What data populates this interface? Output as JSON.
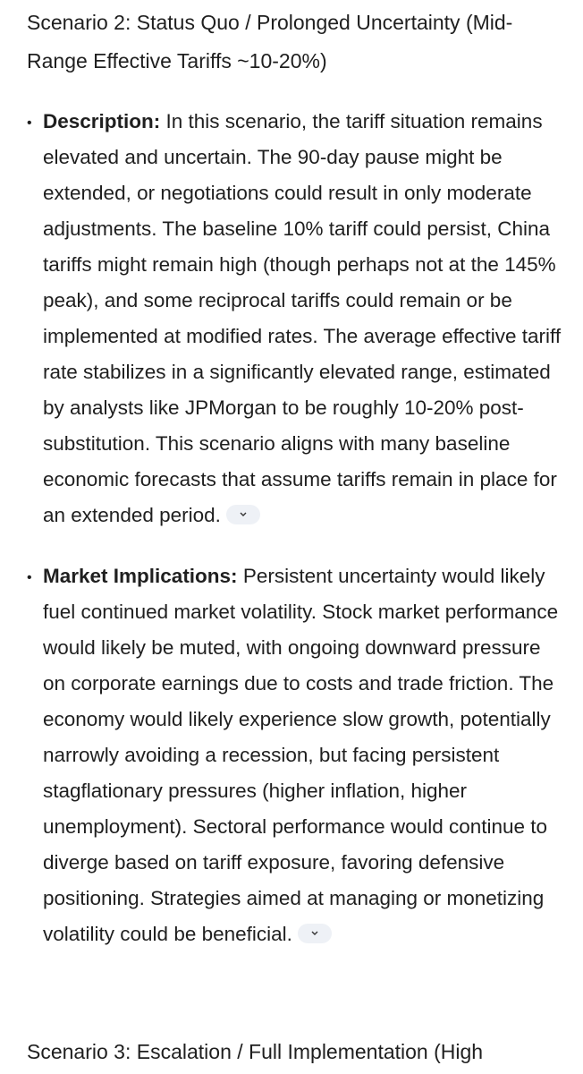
{
  "scenario_2": {
    "heading": "Scenario 2: Status Quo / Prolonged Uncertainty (Mid-Range Effective Tariffs ~10-20%)",
    "items": [
      {
        "label": "Description:",
        "text": "In this scenario, the tariff situation remains elevated and uncertain. The 90-day pause might be extended, or negotiations could result in only moderate adjustments. The baseline 10% tariff could persist, China tariffs might remain high (though perhaps not at the 145% peak), and some reciprocal tariffs could remain or be implemented at modified rates. The average effective tariff rate stabilizes in a significantly elevated range, estimated by analysts like JPMorgan to be roughly 10-20% post-substitution. This scenario aligns with many baseline economic forecasts that assume tariffs remain in place for an extended period."
      },
      {
        "label": "Market Implications:",
        "text": "Persistent uncertainty would likely fuel continued market volatility. Stock market performance would likely be muted, with ongoing downward pressure on corporate earnings due to costs and trade friction. The economy would likely experience slow growth, potentially narrowly avoiding a recession, but facing persistent stagflationary pressures (higher inflation, higher unemployment). Sectoral performance would continue to diverge based on tariff exposure, favoring defensive positioning. Strategies aimed at managing or monetizing volatility could be beneficial."
      }
    ]
  },
  "scenario_3": {
    "heading": "Scenario 3: Escalation / Full Implementation (High"
  }
}
